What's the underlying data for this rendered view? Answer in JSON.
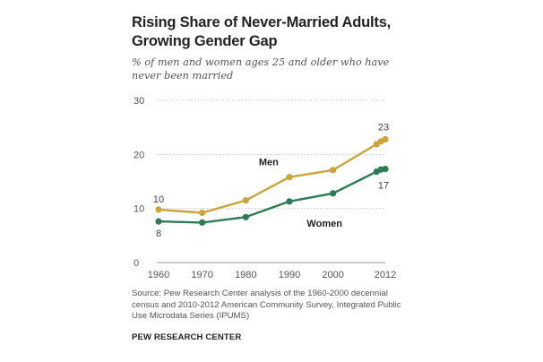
{
  "chart_data": {
    "type": "line",
    "title": "Rising Share of Never-Married Adults, Growing Gender Gap",
    "subtitle": "% of men and women ages 25 and older who have never been married",
    "x": [
      1960,
      1970,
      1980,
      1990,
      2000,
      2010,
      2011,
      2012
    ],
    "x_ticks": [
      "1960",
      "1970",
      "1980",
      "1990",
      "2000",
      "2012"
    ],
    "x_tick_values": [
      1960,
      1970,
      1980,
      1990,
      2000,
      2012
    ],
    "y_ticks": [
      "0",
      "10",
      "20",
      "30"
    ],
    "y_tick_values": [
      0,
      10,
      20,
      30
    ],
    "ylim": [
      0,
      30
    ],
    "xlim": [
      1960,
      2012
    ],
    "xlabel": "",
    "ylabel": "",
    "grid": true,
    "series": [
      {
        "name": "Men",
        "color": "#c9a53a",
        "values": [
          9.8,
          9.2,
          11.5,
          15.8,
          17.1,
          21.9,
          22.4,
          22.8
        ],
        "start_label": "10",
        "end_label": "23"
      },
      {
        "name": "Women",
        "color": "#2f7a56",
        "values": [
          7.6,
          7.4,
          8.4,
          11.3,
          12.8,
          16.8,
          17.2,
          17.3
        ],
        "start_label": "8",
        "end_label": "17"
      }
    ]
  },
  "source": "Source: Pew Research Center analysis of the 1960-2000 decennial census and 2010-2012 American Community Survey, Integrated Public Use Microdata Series (IPUMS)",
  "brand": "PEW RESEARCH CENTER"
}
